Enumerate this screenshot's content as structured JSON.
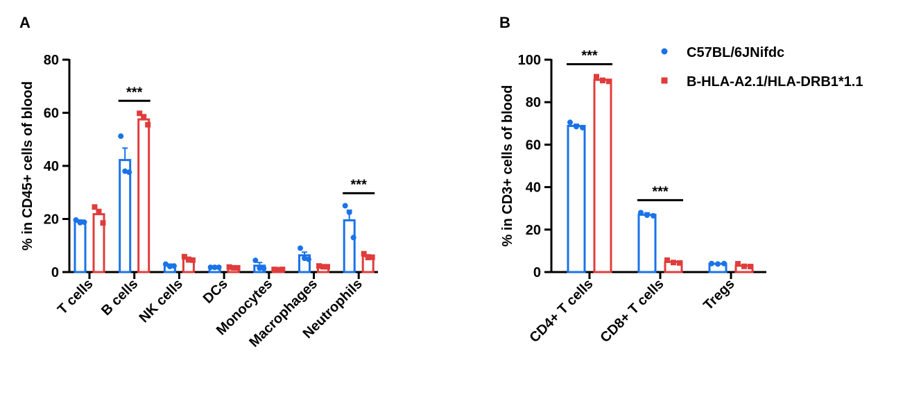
{
  "colors": {
    "blue": "#1a73e8",
    "red": "#e03c3c",
    "axis": "#000000"
  },
  "panels": {
    "a": {
      "letter": "A"
    },
    "b": {
      "letter": "B"
    }
  },
  "legend": {
    "entries": [
      {
        "label": "C57BL/6JNifdc",
        "marker": "circle",
        "color": "#1a73e8"
      },
      {
        "label": "B-HLA-A2.1/HLA-DRB1*1.1",
        "marker": "square",
        "color": "#e03c3c"
      }
    ],
    "placement": "top-right of panel B"
  },
  "chart_data": [
    {
      "panel": "A",
      "type": "bar",
      "ylabel": "% in CD45+ cells of blood",
      "xlabel": "",
      "ylim": [
        0,
        80
      ],
      "yticks": [
        0,
        20,
        40,
        60,
        80
      ],
      "categories": [
        "T cells",
        "B cells",
        "NK cells",
        "DCs",
        "Monocytes",
        "Macrophages",
        "Neutrophils"
      ],
      "series": [
        {
          "name": "C57BL/6JNifdc",
          "color": "#1a73e8",
          "marker": "circle",
          "values": [
            19.0,
            42.2,
            2.5,
            1.8,
            2.4,
            6.3,
            19.5
          ],
          "errors": [
            0.6,
            4.5,
            0.5,
            0.1,
            1.2,
            1.2,
            3.8
          ],
          "points": [
            [
              19.6,
              18.6,
              18.8
            ],
            [
              51.2,
              38.0,
              37.6
            ],
            [
              3.0,
              2.1,
              2.3
            ],
            [
              1.8,
              1.8,
              1.8
            ],
            [
              4.4,
              1.5,
              1.4
            ],
            [
              9.0,
              5.2,
              4.8
            ],
            [
              25.0,
              22.5,
              13.0
            ]
          ]
        },
        {
          "name": "B-HLA-A2.1/HLA-DRB1*1.1",
          "color": "#e03c3c",
          "marker": "square",
          "values": [
            21.8,
            57.5,
            5.0,
            1.7,
            1.0,
            2.1,
            6.0
          ],
          "errors": [
            1.8,
            1.5,
            0.6,
            0.2,
            0.1,
            0.2,
            0.5
          ],
          "points": [
            [
              24.5,
              22.5,
              18.5
            ],
            [
              59.8,
              58.5,
              55.5
            ],
            [
              5.8,
              4.6,
              4.5
            ],
            [
              1.9,
              1.6,
              1.6
            ],
            [
              1.0,
              0.9,
              1.0
            ],
            [
              2.3,
              2.0,
              2.0
            ],
            [
              6.9,
              5.5,
              5.6
            ]
          ]
        }
      ],
      "significance": [
        {
          "category_index": 1,
          "label": "***"
        },
        {
          "category_index": 6,
          "label": "***"
        }
      ]
    },
    {
      "panel": "B",
      "type": "bar",
      "ylabel": "% in CD3+ cells of blood",
      "xlabel": "",
      "ylim": [
        0,
        100
      ],
      "yticks": [
        0,
        20,
        40,
        60,
        80,
        100
      ],
      "categories": [
        "CD4+ T cells",
        "CD8+ T cells",
        "Tregs"
      ],
      "series": [
        {
          "name": "C57BL/6JNifdc",
          "color": "#1a73e8",
          "marker": "circle",
          "values": [
            68.8,
            27.0,
            3.9
          ],
          "errors": [
            0.8,
            0.9,
            0.2
          ],
          "points": [
            [
              70.5,
              68.5,
              68.0
            ],
            [
              28.0,
              26.8,
              26.5
            ],
            [
              4.0,
              3.8,
              4.0
            ]
          ]
        },
        {
          "name": "B-HLA-A2.1/HLA-DRB1*1.1",
          "color": "#e03c3c",
          "marker": "square",
          "values": [
            90.5,
            4.8,
            3.0
          ],
          "errors": [
            0.8,
            0.4,
            0.5
          ],
          "points": [
            [
              92.0,
              90.2,
              89.8
            ],
            [
              5.6,
              4.5,
              4.3
            ],
            [
              3.9,
              2.7,
              2.6
            ]
          ]
        }
      ],
      "significance": [
        {
          "category_index": 0,
          "label": "***"
        },
        {
          "category_index": 1,
          "label": "***"
        }
      ]
    }
  ]
}
